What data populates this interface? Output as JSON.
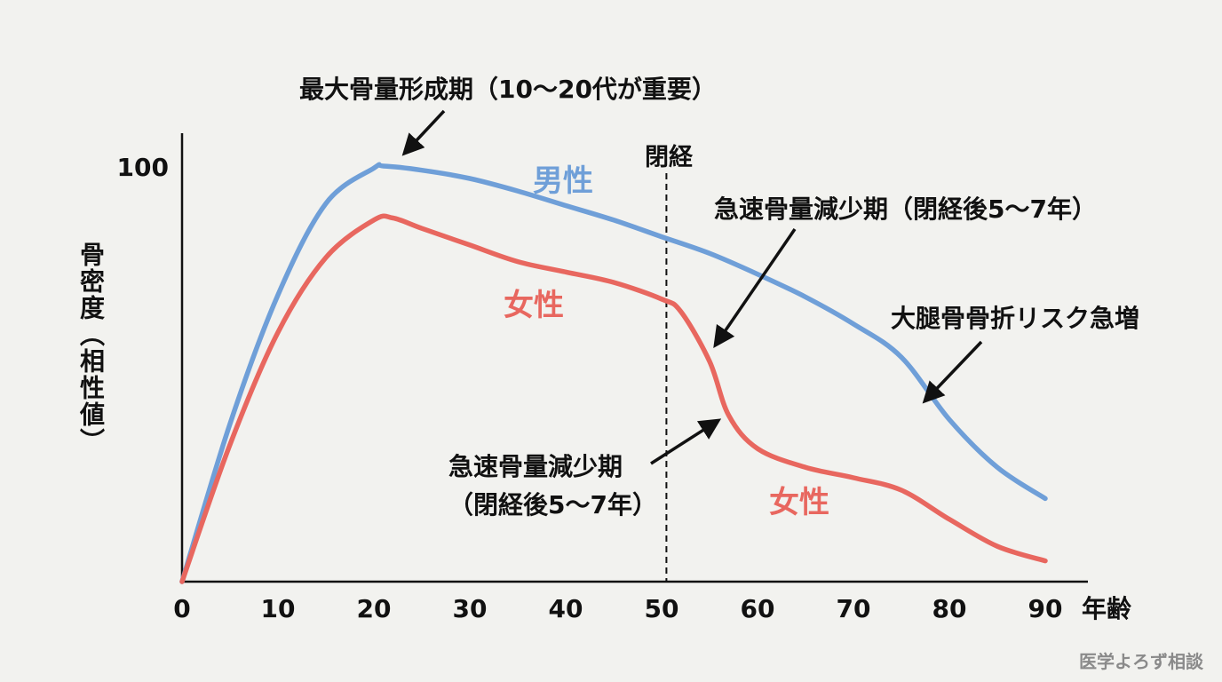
{
  "chart_data": {
    "type": "line",
    "ylabel": "骨密度（相性値）",
    "xlabel": "年齢",
    "xlim": [
      0,
      90
    ],
    "ylim": [
      0,
      100
    ],
    "x_ticks": [
      "0",
      "10",
      "20",
      "30",
      "40",
      "50",
      "60",
      "70",
      "80",
      "90"
    ],
    "y_ticks": [
      "100"
    ],
    "series": [
      {
        "name": "男性",
        "color": "#6f9fd8",
        "x": [
          0,
          5,
          10,
          15,
          20,
          21,
          25,
          30,
          35,
          40,
          45,
          50,
          55,
          60,
          65,
          70,
          75,
          80,
          85,
          90
        ],
        "y": [
          0,
          38,
          69,
          91,
          99.5,
          100,
          99,
          97,
          94,
          90.5,
          87,
          83,
          79,
          74,
          68.5,
          62,
          54,
          39,
          27.5,
          20
        ]
      },
      {
        "name": "女性",
        "color": "#e8675f",
        "x": [
          0,
          5,
          10,
          15,
          20,
          22,
          25,
          30,
          35,
          40,
          45,
          50,
          52,
          55,
          57,
          60,
          65,
          70,
          75,
          80,
          85,
          90
        ],
        "y": [
          0,
          33,
          60,
          78,
          87,
          87.5,
          85,
          81,
          77,
          74.5,
          72,
          68,
          65,
          53,
          40,
          32,
          27.5,
          25,
          22,
          15,
          8.5,
          5
        ]
      }
    ],
    "vline": {
      "x": 50.5,
      "label": "閉経"
    },
    "annotations": [
      "最大骨量形成期（10〜20代が重要）",
      "急速骨量減少期（閉経後5〜7年）",
      "大腿骨骨折リスク急増",
      "急速骨量減少期",
      "（閉経後5〜7年）"
    ],
    "series_labels": [
      "男性",
      "女性",
      "女性"
    ]
  },
  "watermark": "医学よろず相談"
}
